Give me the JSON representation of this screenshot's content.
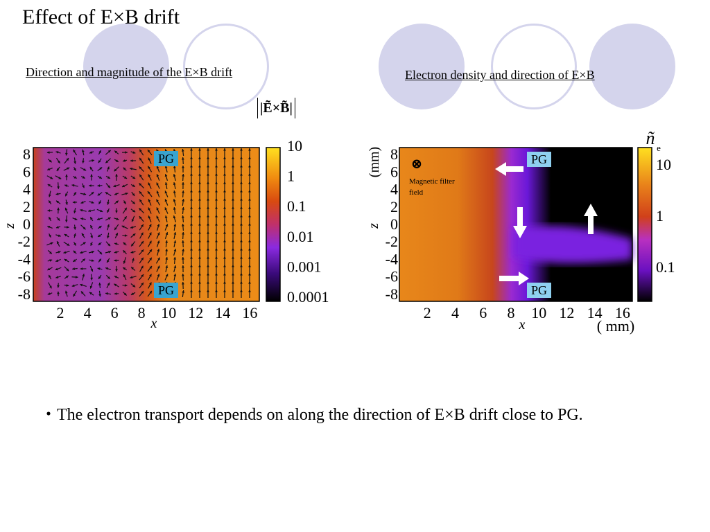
{
  "slide": {
    "title": "Effect of E×B drift",
    "subtitle_left": "Direction and magnitude of the E×B drift",
    "subtitle_right": "Electron density and direction of E×B",
    "bullet": "・The electron transport depends on  along the direction of E×B drift close to PG."
  },
  "left_plot": {
    "colorbar_title": "|Ẽ×B̃|",
    "colorbar_ticks": [
      "10",
      "1",
      "0.1",
      "0.01",
      "0.001",
      "0.0001"
    ],
    "x_ticks": [
      "2",
      "4",
      "6",
      "8",
      "10",
      "12",
      "14",
      "16"
    ],
    "z_ticks": [
      "8",
      "6",
      "4",
      "2",
      "0",
      "-2",
      "-4",
      "-6",
      "-8"
    ],
    "xlabel": "x",
    "zlabel": "z",
    "pg_label": "PG"
  },
  "right_plot": {
    "colorbar_title": "ñ",
    "colorbar_subscript": "e",
    "colorbar_ticks": [
      "10",
      "1",
      "0.1"
    ],
    "x_ticks": [
      "2",
      "4",
      "6",
      "8",
      "10",
      "12",
      "14",
      "16"
    ],
    "z_ticks": [
      "8",
      "6",
      "4",
      "2",
      "0",
      "-2",
      "-4",
      "-6",
      "-8"
    ],
    "xlabel": "x",
    "zlabel": "z",
    "zunit": "(mm)",
    "xunit": "( mm)",
    "pg_label": "PG",
    "filter_label": "Magnetic filter field",
    "filter_symbol": "⊗"
  },
  "colors": {
    "decor_circle": "#d4d4ec",
    "pg_box_left": "#3aa4cf",
    "pg_box_right": "#8fd0f0"
  }
}
